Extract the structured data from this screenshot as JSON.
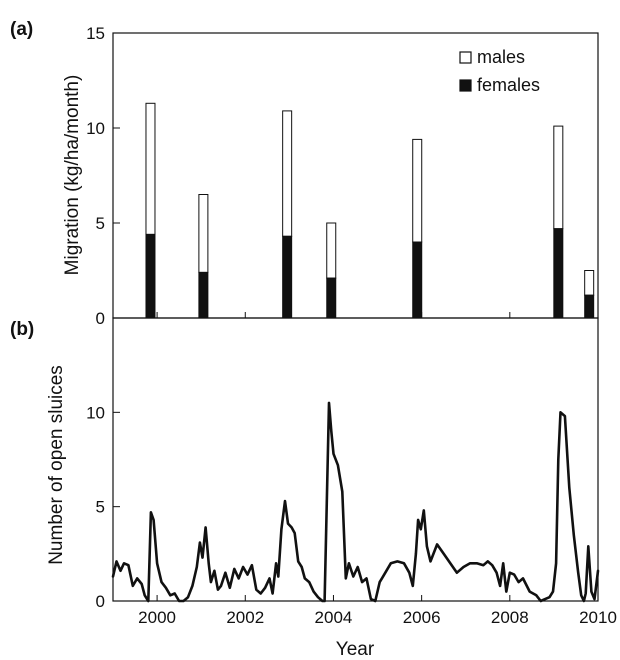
{
  "colors": {
    "male": "#ffffff",
    "female": "#111111",
    "stroke": "#111111",
    "line": "#111111"
  },
  "chart_data": [
    {
      "panel": "(a)",
      "type": "bar",
      "stacked": true,
      "ylabel": "Migration (kg/ha/month)",
      "ylim": [
        0,
        15
      ],
      "yticks": [
        0,
        5,
        10,
        15
      ],
      "xlim": [
        1999,
        2010
      ],
      "x": [
        1999.85,
        2001.05,
        2002.95,
        2003.95,
        2005.9,
        2009.1,
        2009.8
      ],
      "series": [
        {
          "name": "females",
          "values": [
            4.4,
            2.4,
            4.3,
            2.1,
            4.0,
            4.7,
            1.2
          ]
        },
        {
          "name": "males",
          "values": [
            6.9,
            4.1,
            6.6,
            2.9,
            5.4,
            5.4,
            1.3
          ]
        }
      ],
      "totals": [
        11.3,
        6.5,
        10.9,
        5.0,
        9.4,
        10.1,
        2.5
      ],
      "legend": {
        "position": "top-right",
        "entries": [
          "males",
          "females"
        ]
      }
    },
    {
      "panel": "(b)",
      "type": "line",
      "ylabel": "Number of open sluices",
      "xlabel": "Year",
      "xlim": [
        1999,
        2010
      ],
      "xticks": [
        2000,
        2002,
        2004,
        2006,
        2008,
        2010
      ],
      "ylim": [
        0,
        15
      ],
      "yticks": [
        0,
        5,
        10
      ],
      "series": [
        {
          "x": [
            1999.0,
            1999.08,
            1999.17,
            1999.25,
            1999.35,
            1999.45,
            1999.55,
            1999.65,
            1999.72,
            1999.8,
            1999.86,
            1999.92,
            2000.0,
            2000.1,
            2000.2,
            2000.3,
            2000.4,
            2000.5,
            2000.6,
            2000.7,
            2000.8,
            2000.9,
            2000.97,
            2001.03,
            2001.1,
            2001.17,
            2001.22,
            2001.3,
            2001.38,
            2001.45,
            2001.55,
            2001.65,
            2001.75,
            2001.85,
            2001.95,
            2002.05,
            2002.15,
            2002.25,
            2002.35,
            2002.45,
            2002.55,
            2002.62,
            2002.7,
            2002.75,
            2002.82,
            2002.9,
            2002.97,
            2003.05,
            2003.12,
            2003.2,
            2003.28,
            2003.35,
            2003.45,
            2003.55,
            2003.65,
            2003.75,
            2003.8,
            2003.9,
            2003.95,
            2004.0,
            2004.1,
            2004.2,
            2004.28,
            2004.35,
            2004.45,
            2004.55,
            2004.65,
            2004.75,
            2004.85,
            2004.95,
            2005.05,
            2005.15,
            2005.3,
            2005.45,
            2005.6,
            2005.72,
            2005.8,
            2005.87,
            2005.92,
            2005.98,
            2006.05,
            2006.12,
            2006.2,
            2006.35,
            2006.5,
            2006.65,
            2006.8,
            2006.95,
            2007.1,
            2007.25,
            2007.4,
            2007.5,
            2007.6,
            2007.7,
            2007.78,
            2007.85,
            2007.92,
            2008.0,
            2008.1,
            2008.2,
            2008.3,
            2008.45,
            2008.6,
            2008.7,
            2008.8,
            2008.9,
            2008.98,
            2009.05,
            2009.1,
            2009.15,
            2009.25,
            2009.35,
            2009.45,
            2009.55,
            2009.62,
            2009.68,
            2009.72,
            2009.78,
            2009.85,
            2009.92,
            2010.0
          ],
          "y": [
            1.3,
            2.1,
            1.6,
            2.0,
            1.9,
            0.8,
            1.2,
            0.9,
            0.3,
            0.0,
            4.7,
            4.3,
            2.0,
            1.0,
            0.7,
            0.3,
            0.4,
            0.0,
            0.0,
            0.2,
            0.8,
            1.8,
            3.1,
            2.3,
            3.9,
            2.0,
            1.0,
            1.6,
            0.6,
            0.8,
            1.5,
            0.7,
            1.7,
            1.2,
            1.8,
            1.4,
            1.9,
            0.6,
            0.4,
            0.7,
            1.2,
            0.4,
            2.0,
            1.3,
            3.8,
            5.3,
            4.1,
            3.9,
            3.6,
            2.1,
            1.8,
            1.2,
            1.0,
            0.5,
            0.2,
            0.0,
            0.0,
            10.5,
            9.0,
            7.8,
            7.2,
            5.8,
            1.2,
            2.0,
            1.3,
            1.8,
            1.0,
            1.2,
            0.1,
            0.0,
            1.0,
            1.4,
            2.0,
            2.1,
            2.0,
            1.5,
            0.8,
            2.5,
            4.3,
            3.8,
            4.8,
            2.9,
            2.1,
            3.0,
            2.5,
            2.0,
            1.5,
            1.8,
            2.0,
            2.0,
            1.9,
            2.1,
            1.9,
            1.5,
            0.8,
            2.0,
            0.5,
            1.5,
            1.4,
            1.0,
            1.2,
            0.5,
            0.3,
            0.0,
            0.1,
            0.2,
            0.5,
            2.0,
            7.5,
            10.0,
            9.8,
            6.0,
            3.5,
            1.5,
            0.3,
            0.0,
            0.4,
            2.9,
            0.5,
            0.1,
            1.6
          ]
        }
      ]
    }
  ]
}
